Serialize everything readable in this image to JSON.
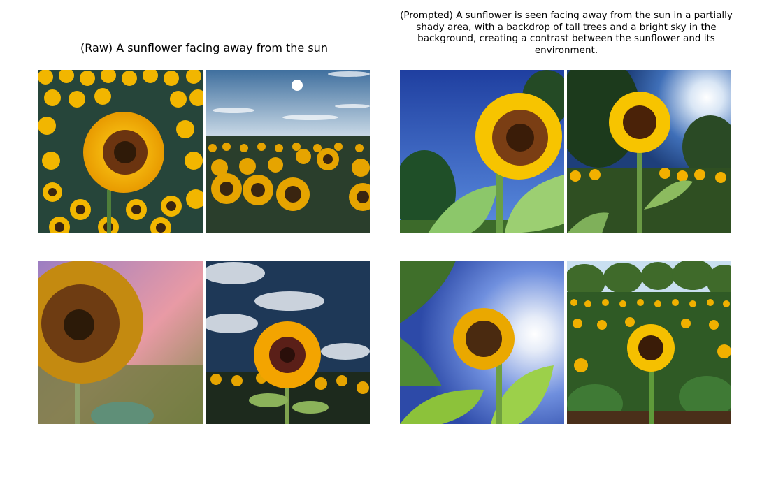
{
  "panels": {
    "raw": {
      "title": "(Raw) A sunflower facing away from the sun"
    },
    "prompted": {
      "title": "(Prompted) A sunflower is seen facing away from the sun in a partially shady area, with a backdrop of tall trees and a bright sky in the background, creating a contrast between the sunflower and its environment."
    }
  }
}
